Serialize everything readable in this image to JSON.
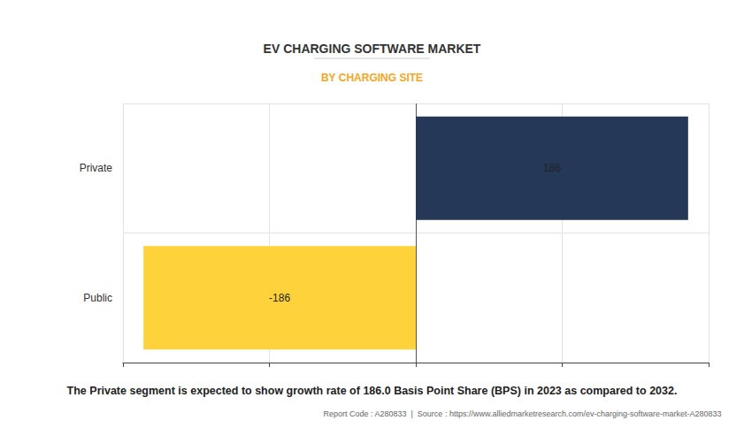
{
  "chart_data": {
    "type": "bar",
    "title": "EV CHARGING SOFTWARE MARKET",
    "subtitle": "BY CHARGING SITE",
    "caption": "The Private segment is expected to show growth rate of 186.0 Basis Point Share (BPS) in 2023 as compared to 2032.",
    "source": "Report Code : A280833  |  Source : https://www.alliedmarketresearch.com/ev-charging-software-market-A280833",
    "categories": [
      "Private",
      "Public"
    ],
    "values": [
      186,
      -186
    ],
    "colors": [
      "#253858",
      "#FDD23B"
    ],
    "orientation": "horizontal",
    "xlim": [
      -200,
      200
    ],
    "xticks": [
      -200,
      -100,
      0,
      100,
      200
    ],
    "grid": true,
    "data_labels": true,
    "tick_labels": "y"
  }
}
